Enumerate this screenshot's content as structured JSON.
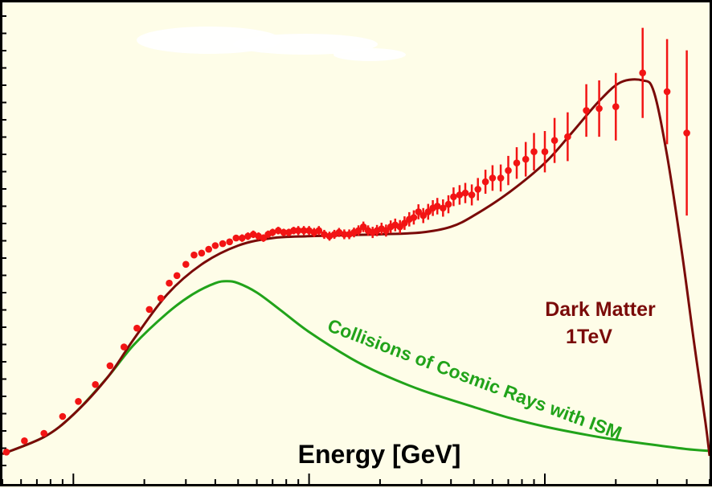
{
  "chart_data": {
    "type": "line",
    "xlabel": "Energy [GeV]",
    "ylabel": "",
    "x_scale": "log",
    "xlim": [
      5,
      5000
    ],
    "ylim": [
      0,
      100
    ],
    "grid": false,
    "series": [
      {
        "name": "Dark Matter\n1TeV",
        "kind": "line",
        "color": "#7a0a08",
        "x": [
          5,
          7.5,
          10,
          14,
          18,
          25,
          35,
          50,
          70,
          100,
          150,
          200,
          300,
          400,
          500,
          700,
          1000,
          1300,
          1700,
          2100,
          2600,
          2900,
          3300,
          3800,
          4300,
          4800,
          5000
        ],
        "y": [
          0.5,
          5,
          11,
          21,
          31,
          43,
          51,
          56,
          58,
          58.5,
          58.8,
          59,
          59.5,
          61,
          64,
          70,
          78,
          86,
          94.5,
          99.5,
          100,
          97,
          80,
          55,
          30,
          9,
          0
        ]
      },
      {
        "name": "Collisions of Cosmic Rays with ISM",
        "kind": "line",
        "color": "#21a31a",
        "x": [
          5,
          7.5,
          10,
          14,
          18,
          25,
          32,
          40,
          45,
          50,
          60,
          75,
          100,
          150,
          200,
          300,
          500,
          700,
          1000,
          1500,
          2000,
          3000,
          4000,
          5000
        ],
        "y": [
          0.5,
          5,
          11,
          21,
          29.5,
          38,
          43,
          46,
          46.5,
          46,
          43.5,
          39,
          33,
          26,
          22,
          17.5,
          13,
          10.2,
          7.8,
          5.6,
          4.3,
          2.8,
          1.8,
          1.3
        ]
      }
    ],
    "data_points": {
      "kind": "points with error bars",
      "color": "#f21414",
      "x": [
        5.2,
        6.2,
        7.5,
        9.0,
        10.5,
        12.4,
        14.3,
        16.4,
        18.6,
        21.0,
        23.5,
        25.5,
        27.5,
        30,
        32.5,
        35,
        37.5,
        40,
        43,
        46,
        49,
        52,
        55,
        58,
        61,
        64,
        67,
        70,
        74,
        78,
        82,
        86,
        90,
        95,
        100,
        105,
        110,
        116,
        122,
        128,
        134,
        141,
        148,
        155,
        162,
        170,
        178,
        186,
        194,
        203,
        212,
        222,
        232,
        243,
        254,
        266,
        278,
        291,
        305,
        320,
        335,
        350,
        370,
        390,
        410,
        435,
        460,
        490,
        520,
        560,
        600,
        650,
        700,
        760,
        830,
        900,
        1000,
        1100,
        1250,
        1500,
        1700,
        2000,
        2600,
        3300,
        4000
      ],
      "y": [
        1,
        4,
        6,
        10.5,
        14.5,
        19,
        24,
        29,
        34,
        39,
        42,
        46,
        48,
        51,
        53.5,
        54,
        55,
        56,
        56.5,
        57,
        58,
        58,
        58.5,
        59,
        58.5,
        58,
        59,
        59.5,
        60,
        59.5,
        59.5,
        60,
        60,
        60,
        60,
        59.5,
        60,
        59,
        58.5,
        59,
        59.5,
        59,
        59,
        59.5,
        60,
        61,
        60,
        59.5,
        60,
        60.5,
        60,
        61,
        61.5,
        61,
        62,
        63,
        63.5,
        65,
        64,
        65,
        66,
        66.5,
        66,
        67,
        69,
        69.5,
        70,
        69.5,
        71,
        73,
        74,
        74,
        76,
        78,
        79,
        81,
        81,
        84,
        85,
        92,
        92.5,
        93,
        102,
        97,
        86
      ],
      "err": [
        0.5,
        0.5,
        0.5,
        0.5,
        0.5,
        0.5,
        0.5,
        0.5,
        0.5,
        0.5,
        0.5,
        0.7,
        0.7,
        0.8,
        0.8,
        0.8,
        0.8,
        0.8,
        0.8,
        0.8,
        0.8,
        1,
        1,
        1,
        1,
        1,
        1,
        1,
        1,
        1,
        1,
        1,
        1.2,
        1.2,
        1.2,
        1.2,
        1.2,
        1.2,
        1.2,
        1.2,
        1.2,
        1.3,
        1.3,
        1.3,
        1.4,
        1.4,
        1.4,
        1.5,
        1.5,
        1.6,
        1.6,
        1.7,
        1.7,
        1.8,
        1.8,
        1.9,
        1.9,
        2,
        2,
        2.1,
        2.1,
        2.2,
        2.3,
        2.4,
        2.5,
        2.6,
        2.7,
        2.8,
        3,
        3.2,
        3.4,
        3.6,
        3.9,
        4.2,
        4.6,
        5,
        5.5,
        6,
        6.5,
        7,
        7.5,
        9,
        12,
        14,
        22
      ]
    },
    "annotations": [
      {
        "text": "Dark Matter",
        "color": "#7a0a08"
      },
      {
        "text": "1TeV",
        "color": "#7a0a08"
      },
      {
        "text": "Collisions of Cosmic Rays with ISM",
        "color": "#21a31a"
      }
    ]
  }
}
